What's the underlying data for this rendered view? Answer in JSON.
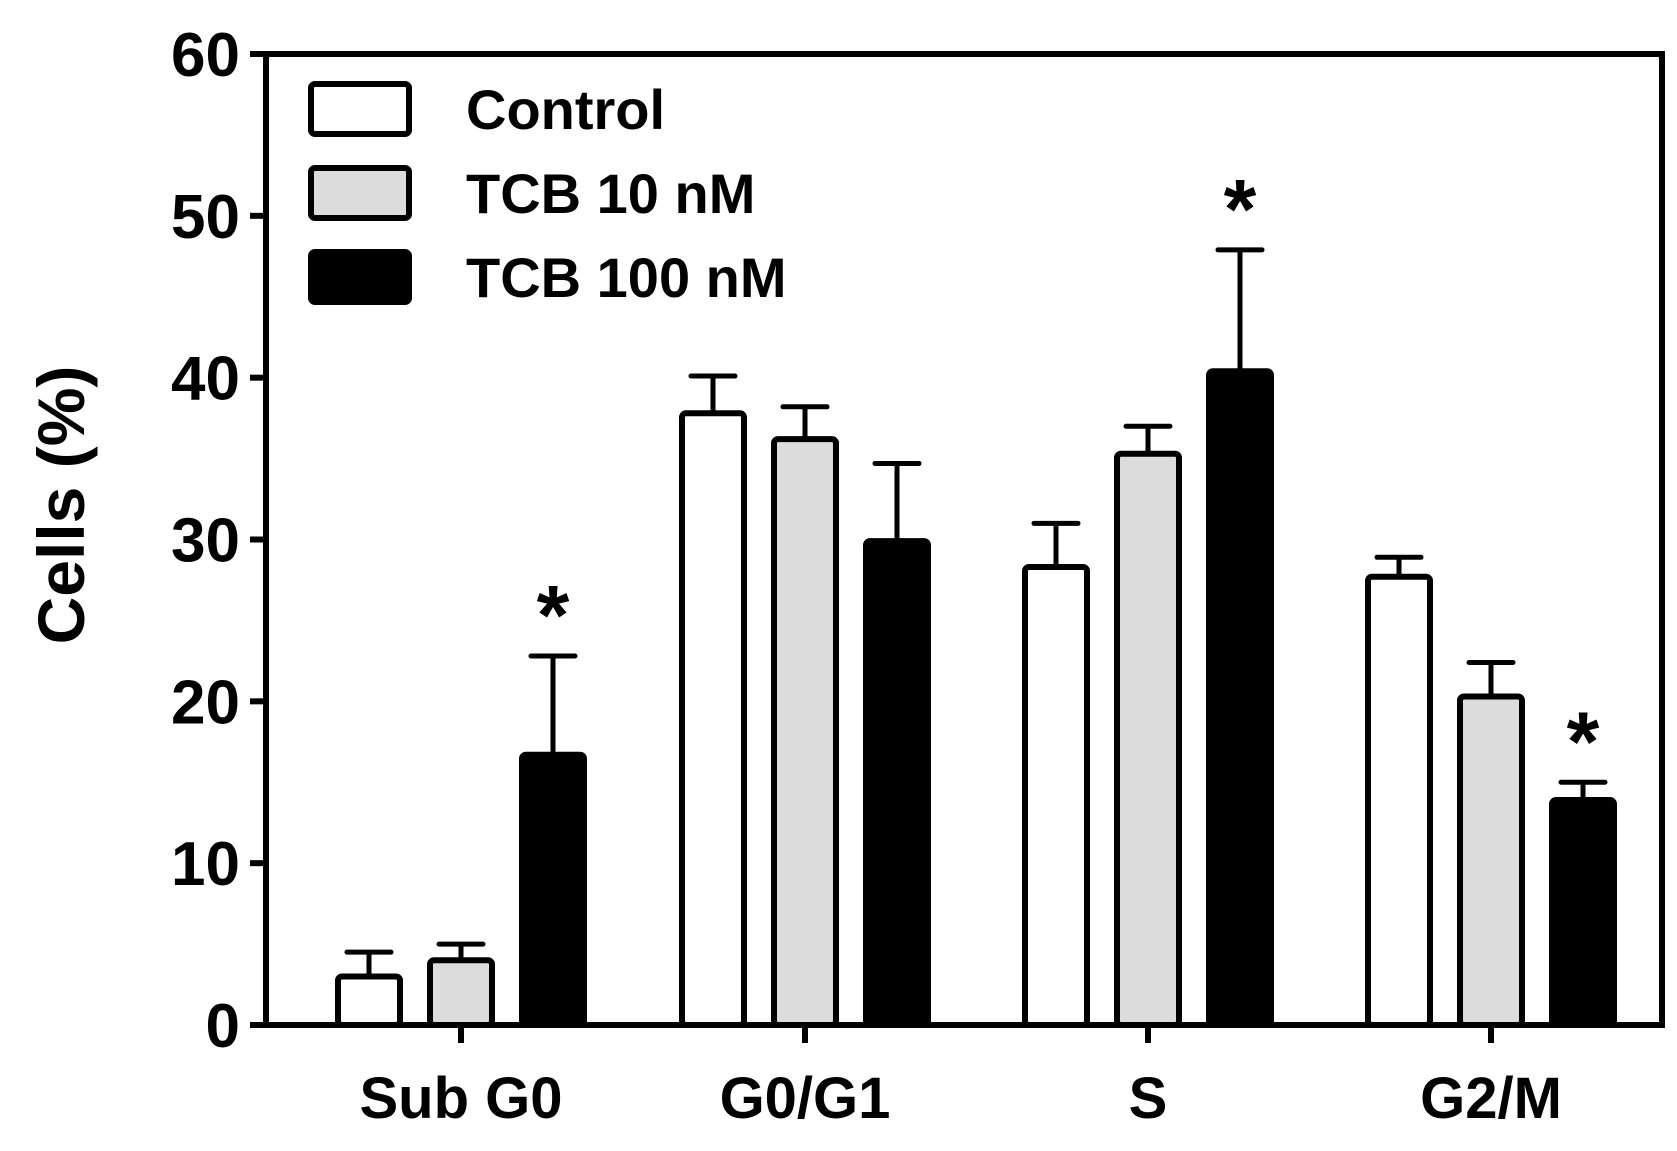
{
  "chart_data": {
    "type": "bar",
    "title": "",
    "xlabel": "",
    "ylabel": "Cells (%)",
    "ylim": [
      0,
      60
    ],
    "yticks": [
      0,
      10,
      20,
      30,
      40,
      50,
      60
    ],
    "grid": false,
    "legend_position": "top-left",
    "categories": [
      "Sub G0",
      "G0/G1",
      "S",
      "G2/M"
    ],
    "series": [
      {
        "name": "Control",
        "color": "#ffffff",
        "values": [
          3.0,
          37.8,
          28.3,
          27.7
        ],
        "errors": [
          1.5,
          2.3,
          2.7,
          1.2
        ]
      },
      {
        "name": "TCB 10 nM",
        "color": "#dcdcdc",
        "values": [
          4.0,
          36.2,
          35.3,
          20.3
        ],
        "errors": [
          1.0,
          2.0,
          1.7,
          2.1
        ]
      },
      {
        "name": "TCB 100 nM",
        "color": "#000000",
        "values": [
          16.7,
          29.9,
          40.4,
          13.9
        ],
        "errors": [
          6.1,
          4.8,
          7.5,
          1.1
        ]
      }
    ],
    "annotations": [
      {
        "text": "*",
        "category": "Sub G0",
        "series": "TCB 100 nM"
      },
      {
        "text": "*",
        "category": "S",
        "series": "TCB 100 nM"
      },
      {
        "text": "*",
        "category": "G2/M",
        "series": "TCB 100 nM"
      }
    ]
  }
}
